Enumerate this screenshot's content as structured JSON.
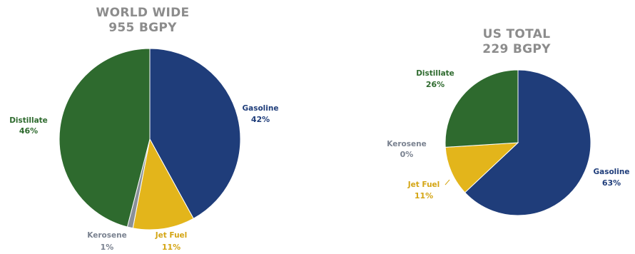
{
  "chart_data": [
    {
      "type": "pie",
      "title_line1": "WORLD WIDE",
      "title_line2": "955 BGPY",
      "slices": [
        {
          "label": "Gasoline",
          "value": 42,
          "pct_label": "42%",
          "color": "#1f3d7a",
          "label_color": "#1f3d7a"
        },
        {
          "label": "Jet Fuel",
          "value": 11,
          "pct_label": "11%",
          "color": "#e3b51b",
          "label_color": "#d4a514"
        },
        {
          "label": "Kerosene",
          "value": 1,
          "pct_label": "1%",
          "color": "#8a9099",
          "label_color": "#7a8290"
        },
        {
          "label": "Distillate",
          "value": 46,
          "pct_label": "46%",
          "color": "#2e6a2e",
          "label_color": "#2e6a2e"
        }
      ]
    },
    {
      "type": "pie",
      "title_line1": "US TOTAL",
      "title_line2": "229 BGPY",
      "slices": [
        {
          "label": "Gasoline",
          "value": 63,
          "pct_label": "63%",
          "color": "#1f3d7a",
          "label_color": "#1f3d7a"
        },
        {
          "label": "Jet Fuel",
          "value": 11,
          "pct_label": "11%",
          "color": "#e3b51b",
          "label_color": "#d4a514"
        },
        {
          "label": "Kerosene",
          "value": 0,
          "pct_label": "0%",
          "color": "#8a9099",
          "label_color": "#7a8290"
        },
        {
          "label": "Distillate",
          "value": 26,
          "pct_label": "26%",
          "color": "#2e6a2e",
          "label_color": "#2e6a2e"
        }
      ]
    }
  ]
}
